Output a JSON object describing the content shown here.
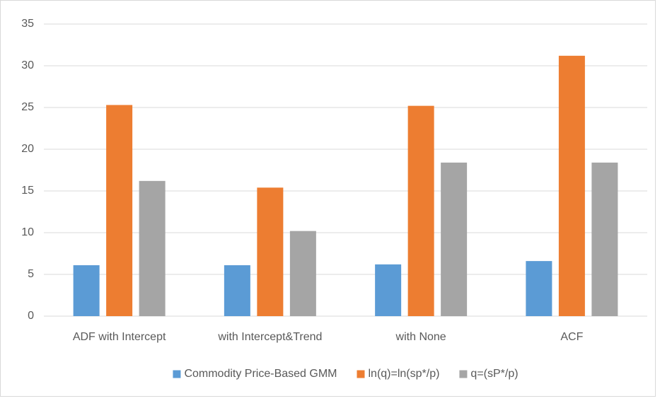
{
  "chart_data": {
    "type": "bar",
    "categories": [
      "ADF with Intercept",
      "with Intercept&Trend",
      "with None",
      "ACF"
    ],
    "series": [
      {
        "name": "Commodity Price-Based GMM",
        "color": "#5b9bd5",
        "values": [
          6.1,
          6.1,
          6.2,
          6.6
        ]
      },
      {
        "name": "ln(q)=ln(sp*/p)",
        "color": "#ed7d31",
        "values": [
          25.3,
          15.4,
          25.2,
          31.2
        ]
      },
      {
        "name": "q=(sP*/p)",
        "color": "#a5a5a5",
        "values": [
          16.2,
          10.2,
          18.4,
          18.4
        ]
      }
    ],
    "ylim": [
      0,
      35
    ],
    "yticks": [
      0,
      5,
      10,
      15,
      20,
      25,
      30,
      35
    ],
    "grid": true,
    "legend": "bottom"
  }
}
